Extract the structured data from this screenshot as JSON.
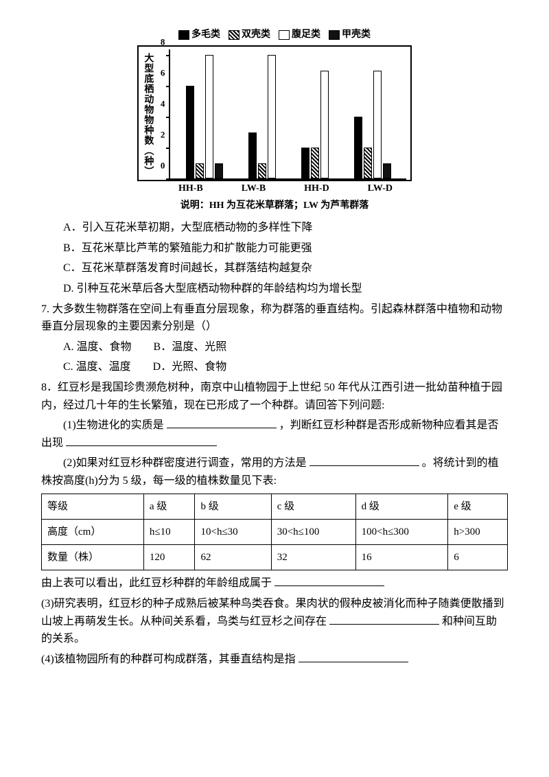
{
  "chart": {
    "type": "bar",
    "legend": [
      {
        "label": "多毛类",
        "style": "solid"
      },
      {
        "label": "双壳类",
        "style": "hatch"
      },
      {
        "label": "腹足类",
        "style": "hollow"
      },
      {
        "label": "甲壳类",
        "style": "dark2"
      }
    ],
    "ylabel": "大型底栖动物物种数（种）",
    "ymax": 8,
    "ytick_step": 2,
    "categories": [
      "HH-B",
      "LW-B",
      "HH-D",
      "LW-D"
    ],
    "series": [
      [
        6,
        3,
        2,
        4
      ],
      [
        1,
        1,
        2,
        2
      ],
      [
        8,
        8,
        7,
        7
      ],
      [
        1,
        0,
        0,
        1
      ]
    ],
    "colors": {
      "solid": "#000000",
      "hatch": "#000000",
      "hollow": "#ffffff",
      "dark2": "#111111",
      "border": "#000000"
    },
    "caption": "说明：HH 为互花米草群落；LW 为芦苇群落"
  },
  "q6_options": {
    "A": "A．引入互花米草初期，大型底栖动物的多样性下降",
    "B": "B．互花米草比芦苇的繁殖能力和扩散能力可能更强",
    "C": "C．互花米草群落发育时间越长，其群落结构越复杂",
    "D": "D. 引种互花米草后各大型底栖动物种群的年龄结构均为增长型"
  },
  "q7": {
    "stem1": "7. 大多数生物群落在空间上有垂直分层现象，称为群落的垂直结构。引起森林群落中植物和动物垂直分层现象的主要因素分别是（）",
    "opts": "A. 温度、食物　　B．温度、光照",
    "opts2": "C. 温度、温度　　D．光照、食物"
  },
  "q8": {
    "stem": "8．红豆杉是我国珍贵濒危树种，南京中山植物园于上世纪 50 年代从江西引进一批幼苗种植于园内，经过几十年的生长繁殖，现在已形成了一个种群。请回答下列问题:",
    "p1a": "(1)生物进化的实质是",
    "p1b": "，判断红豆杉种群是否形成新物种应看其是否出现",
    "p2a": "(2)如果对红豆杉种群密度进行调查，常用的方法是",
    "p2b": "。将统计到的植株按高度(h)分为 5 级，每一级的植株数量见下表:",
    "table": {
      "columns": [
        "等级",
        "a 级",
        "b 级",
        "c 级",
        "d 级",
        "e 级"
      ],
      "row_h_label": "高度（cm）",
      "row_h": [
        "h≤10",
        "10<h≤30",
        "30<h≤100",
        "100<h≤300",
        "h>300"
      ],
      "row_n_label": "数量（株）",
      "row_n": [
        "120",
        "62",
        "32",
        "16",
        "6"
      ]
    },
    "p2c": "由上表可以看出，此红豆杉种群的年龄组成属于",
    "p3": "(3)研究表明，红豆杉的种子成熟后被某种鸟类吞食。果肉状的假种皮被消化而种子随粪便散播到山坡上再萌发生长。从种间关系看，鸟类与红豆杉之间存在",
    "p3b": "和种间互助的关系。",
    "p4": "(4)该植物园所有的种群可构成群落，其垂直结构是指"
  }
}
